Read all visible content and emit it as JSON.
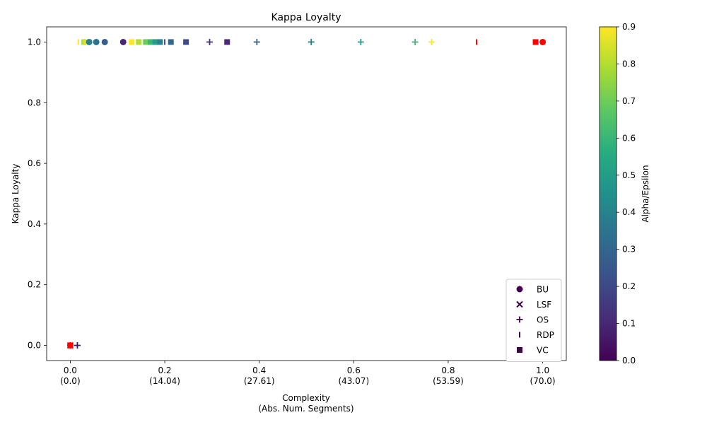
{
  "chart_data": {
    "type": "scatter",
    "title": "Kappa Loyalty",
    "xlabel": [
      "Complexity",
      "(Abs. Num. Segments)"
    ],
    "ylabel": "Kappa Loyalty",
    "xlim": [
      -0.05,
      1.05
    ],
    "ylim": [
      -0.05,
      1.05
    ],
    "xticks": [
      {
        "value": 0.0,
        "label": "0.0",
        "sub": "(0.0)"
      },
      {
        "value": 0.2,
        "label": "0.2",
        "sub": "(14.04)"
      },
      {
        "value": 0.4,
        "label": "0.4",
        "sub": "(27.61)"
      },
      {
        "value": 0.6,
        "label": "0.6",
        "sub": "(43.07)"
      },
      {
        "value": 0.8,
        "label": "0.8",
        "sub": "(53.59)"
      },
      {
        "value": 1.0,
        "label": "1.0",
        "sub": "(70.0)"
      }
    ],
    "yticks": [
      {
        "value": 0.0,
        "label": "0.0"
      },
      {
        "value": 0.2,
        "label": "0.2"
      },
      {
        "value": 0.4,
        "label": "0.4"
      },
      {
        "value": 0.6,
        "label": "0.6"
      },
      {
        "value": 0.8,
        "label": "0.8"
      },
      {
        "value": 1.0,
        "label": "1.0"
      }
    ],
    "grid": false,
    "legend_position": "lower-right",
    "colorbar": {
      "label": "Alpha/Epsilon",
      "range": [
        0.0,
        0.9
      ],
      "colormap": "viridis",
      "ticks": [
        {
          "value": 0.0,
          "label": "0.0"
        },
        {
          "value": 0.1,
          "label": "0.1"
        },
        {
          "value": 0.2,
          "label": "0.2"
        },
        {
          "value": 0.3,
          "label": "0.3"
        },
        {
          "value": 0.4,
          "label": "0.4"
        },
        {
          "value": 0.5,
          "label": "0.5"
        },
        {
          "value": 0.6,
          "label": "0.6"
        },
        {
          "value": 0.7,
          "label": "0.7"
        },
        {
          "value": 0.8,
          "label": "0.8"
        },
        {
          "value": 0.9,
          "label": "0.9"
        }
      ]
    },
    "highlight_color": "#ff0000",
    "series": [
      {
        "name": "BU",
        "marker": "circle",
        "points": [
          {
            "x": 0.0,
            "y": 0.0,
            "c": "red"
          },
          {
            "x": 0.03,
            "y": 1.0,
            "c": 0.85
          },
          {
            "x": 0.04,
            "y": 1.0,
            "c": 0.4
          },
          {
            "x": 0.055,
            "y": 1.0,
            "c": 0.35
          },
          {
            "x": 0.073,
            "y": 1.0,
            "c": 0.27
          },
          {
            "x": 0.112,
            "y": 1.0,
            "c": 0.1
          },
          {
            "x": 1.0,
            "y": 1.0,
            "c": "red"
          }
        ]
      },
      {
        "name": "LSF",
        "marker": "x",
        "points": [
          {
            "x": 0.0,
            "y": 0.0,
            "c": "red"
          }
        ]
      },
      {
        "name": "OS",
        "marker": "plus",
        "points": [
          {
            "x": 0.015,
            "y": 0.0,
            "c": 0.05
          },
          {
            "x": 0.295,
            "y": 1.0,
            "c": 0.15
          },
          {
            "x": 0.395,
            "y": 1.0,
            "c": 0.3
          },
          {
            "x": 0.51,
            "y": 1.0,
            "c": 0.4
          },
          {
            "x": 0.615,
            "y": 1.0,
            "c": 0.5
          },
          {
            "x": 0.73,
            "y": 1.0,
            "c": 0.6
          },
          {
            "x": 0.765,
            "y": 1.0,
            "c": 0.9
          }
        ]
      },
      {
        "name": "RDP",
        "marker": "vline",
        "points": [
          {
            "x": 0.017,
            "y": 1.0,
            "c": 0.9
          },
          {
            "x": 0.025,
            "y": 1.0,
            "c": 0.8
          },
          {
            "x": 0.2,
            "y": 1.0,
            "c": 0.2
          },
          {
            "x": 0.86,
            "y": 1.0,
            "c": "red"
          }
        ]
      },
      {
        "name": "VC",
        "marker": "square",
        "points": [
          {
            "x": 0.13,
            "y": 1.0,
            "c": 0.9
          },
          {
            "x": 0.145,
            "y": 1.0,
            "c": 0.8
          },
          {
            "x": 0.16,
            "y": 1.0,
            "c": 0.7
          },
          {
            "x": 0.17,
            "y": 1.0,
            "c": 0.6
          },
          {
            "x": 0.18,
            "y": 1.0,
            "c": 0.5
          },
          {
            "x": 0.19,
            "y": 1.0,
            "c": 0.4
          },
          {
            "x": 0.213,
            "y": 1.0,
            "c": 0.3
          },
          {
            "x": 0.245,
            "y": 1.0,
            "c": 0.2
          },
          {
            "x": 0.332,
            "y": 1.0,
            "c": 0.1
          },
          {
            "x": 0.985,
            "y": 1.0,
            "c": "red"
          }
        ]
      }
    ]
  }
}
